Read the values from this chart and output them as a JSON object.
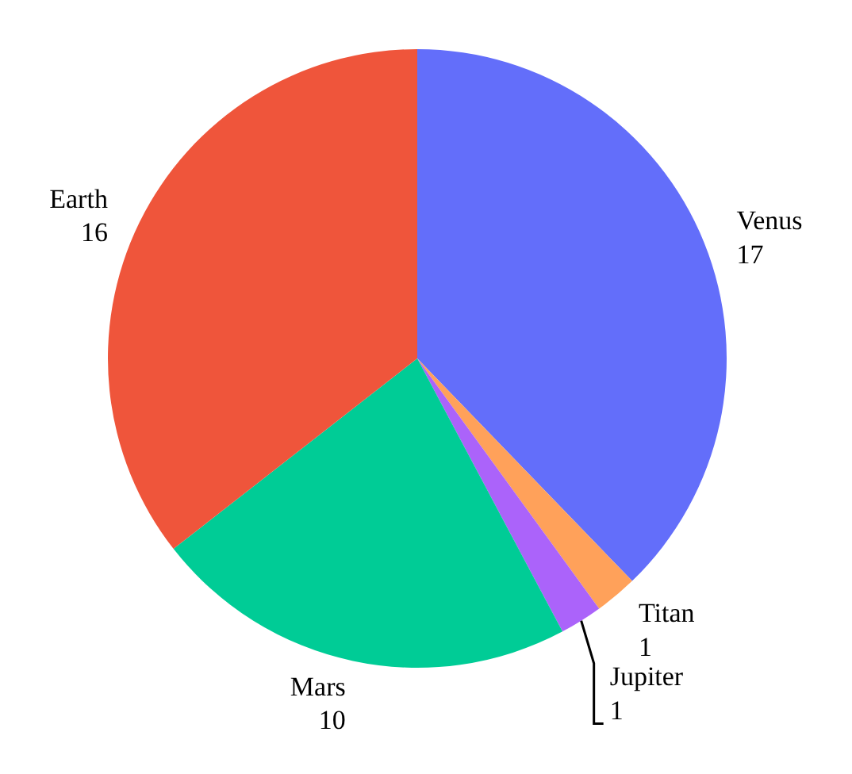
{
  "chart_data": {
    "type": "pie",
    "categories": [
      "Venus",
      "Titan",
      "Jupiter",
      "Mars",
      "Earth"
    ],
    "values": [
      17,
      1,
      1,
      10,
      16
    ],
    "colors": [
      "#636efa",
      "#ffa15a",
      "#ab63fa",
      "#00cc96",
      "#ef553b"
    ],
    "data_labels": true
  }
}
